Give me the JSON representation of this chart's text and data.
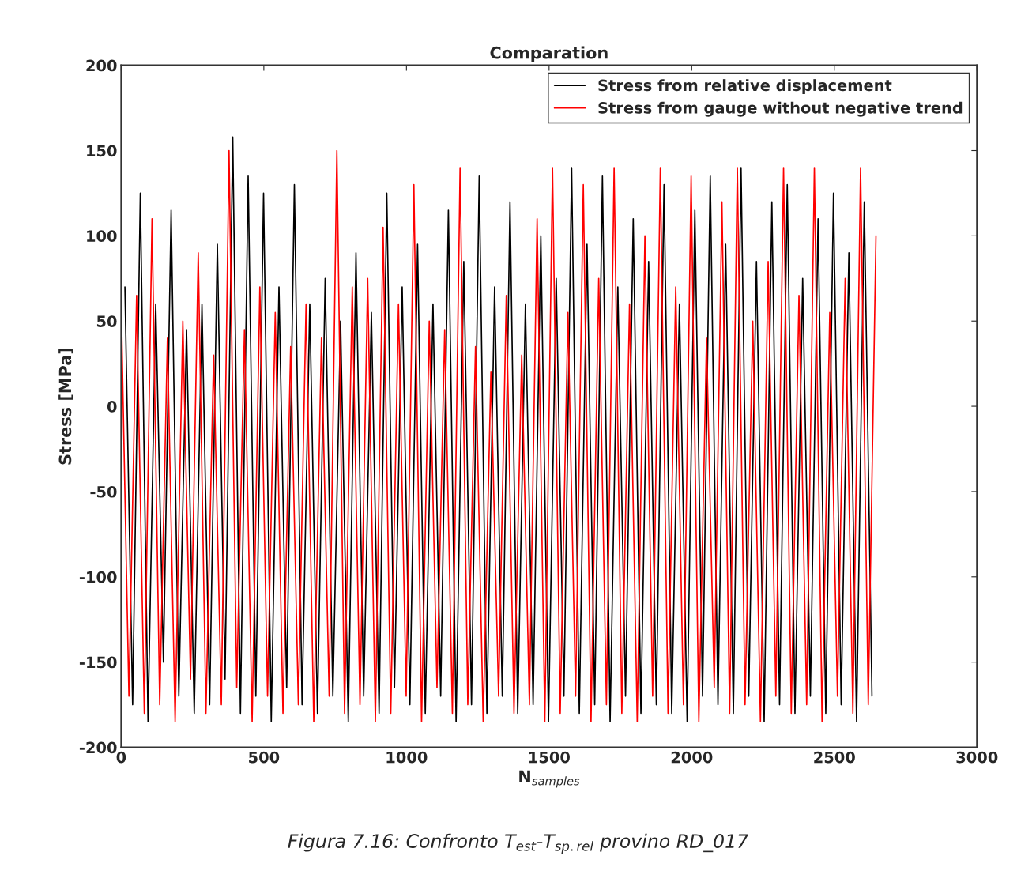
{
  "chart_data": {
    "type": "line",
    "title": "Comparation",
    "xlabel": "N$_{samples}$",
    "ylabel": "Stress [MPa]",
    "xlim": [
      0,
      3000
    ],
    "xticks": [
      0,
      500,
      1000,
      1500,
      2000,
      2500,
      3000
    ],
    "ylim": [
      -200,
      200
    ],
    "yticks": [
      -200,
      -150,
      -100,
      -50,
      0,
      50,
      100,
      150,
      200
    ],
    "grid": false,
    "legend": "top right",
    "line_style": "solid",
    "marker": "none",
    "annotations": [
      "Figura 7.16: Confronto T$_{est}$-T$_{sp.rel}$ provino RD_017"
    ],
    "series": [
      {
        "name": "Stress from relative displacement",
        "color": "#000000",
        "x": [
          13,
          40,
          67,
          94,
          121,
          148,
          175,
          202,
          229,
          256,
          283,
          310,
          337,
          364,
          391,
          418,
          445,
          472,
          499,
          526,
          553,
          580,
          607,
          634,
          661,
          688,
          715,
          742,
          769,
          796,
          823,
          850,
          877,
          904,
          931,
          958,
          985,
          1012,
          1039,
          1066,
          1093,
          1120,
          1147,
          1174,
          1201,
          1228,
          1255,
          1282,
          1309,
          1336,
          1363,
          1390,
          1417,
          1444,
          1471,
          1498,
          1525,
          1552,
          1579,
          1606,
          1633,
          1660,
          1687,
          1714,
          1741,
          1768,
          1795,
          1822,
          1849,
          1876,
          1903,
          1930,
          1957,
          1984,
          2011,
          2038,
          2065,
          2092,
          2119,
          2146,
          2173,
          2200,
          2227,
          2254,
          2281,
          2308,
          2335,
          2362,
          2389,
          2416,
          2443,
          2470,
          2497,
          2524,
          2551,
          2578,
          2605,
          2632
        ],
        "values": [
          70,
          -175,
          125,
          -185,
          60,
          -150,
          115,
          -170,
          45,
          -180,
          60,
          -175,
          95,
          -160,
          158,
          -180,
          135,
          -170,
          125,
          -185,
          70,
          -165,
          130,
          -175,
          60,
          -180,
          75,
          -170,
          50,
          -185,
          90,
          -170,
          55,
          -180,
          125,
          -165,
          70,
          -175,
          95,
          -180,
          60,
          -170,
          115,
          -185,
          85,
          -175,
          135,
          -180,
          70,
          -170,
          120,
          -180,
          60,
          -175,
          100,
          -185,
          75,
          -170,
          140,
          -180,
          95,
          -175,
          135,
          -185,
          70,
          -170,
          110,
          -180,
          85,
          -175,
          130,
          -180,
          60,
          -185,
          115,
          -170,
          135,
          -175,
          95,
          -180,
          140,
          -170,
          85,
          -185,
          120,
          -175,
          130,
          -180,
          75,
          -170,
          110,
          -180,
          125,
          -175,
          90,
          -185,
          120,
          -170
        ]
      },
      {
        "name": "Stress from gauge without negative trend",
        "color": "#ff0000",
        "x": [
          0,
          27,
          54,
          81,
          108,
          135,
          162,
          189,
          216,
          243,
          270,
          297,
          324,
          351,
          378,
          405,
          432,
          459,
          486,
          513,
          540,
          567,
          594,
          621,
          648,
          675,
          702,
          729,
          756,
          783,
          810,
          837,
          864,
          891,
          918,
          945,
          972,
          999,
          1026,
          1053,
          1080,
          1107,
          1134,
          1161,
          1188,
          1215,
          1242,
          1269,
          1296,
          1323,
          1350,
          1377,
          1404,
          1431,
          1458,
          1485,
          1512,
          1539,
          1566,
          1593,
          1620,
          1647,
          1674,
          1701,
          1728,
          1755,
          1782,
          1809,
          1836,
          1863,
          1890,
          1917,
          1944,
          1971,
          1998,
          2025,
          2052,
          2079,
          2106,
          2133,
          2160,
          2187,
          2214,
          2241,
          2268,
          2295,
          2322,
          2349,
          2376,
          2403,
          2430,
          2457,
          2484,
          2511,
          2538,
          2565,
          2592,
          2619,
          2646
        ],
        "values": [
          60,
          -170,
          65,
          -180,
          110,
          -175,
          40,
          -185,
          50,
          -160,
          90,
          -180,
          30,
          -175,
          150,
          -165,
          45,
          -185,
          70,
          -170,
          55,
          -180,
          35,
          -175,
          60,
          -185,
          40,
          -170,
          150,
          -180,
          70,
          -175,
          75,
          -185,
          105,
          -180,
          60,
          -170,
          130,
          -185,
          50,
          -165,
          45,
          -180,
          140,
          -175,
          35,
          -185,
          20,
          -170,
          65,
          -180,
          30,
          -175,
          110,
          -185,
          140,
          -180,
          55,
          -170,
          130,
          -185,
          75,
          -175,
          140,
          -180,
          60,
          -185,
          100,
          -170,
          140,
          -180,
          70,
          -175,
          135,
          -185,
          40,
          -165,
          120,
          -180,
          140,
          -175,
          50,
          -185,
          85,
          -170,
          140,
          -180,
          65,
          -175,
          140,
          -185,
          55,
          -170,
          75,
          -180,
          140,
          -175,
          100
        ]
      }
    ]
  }
}
